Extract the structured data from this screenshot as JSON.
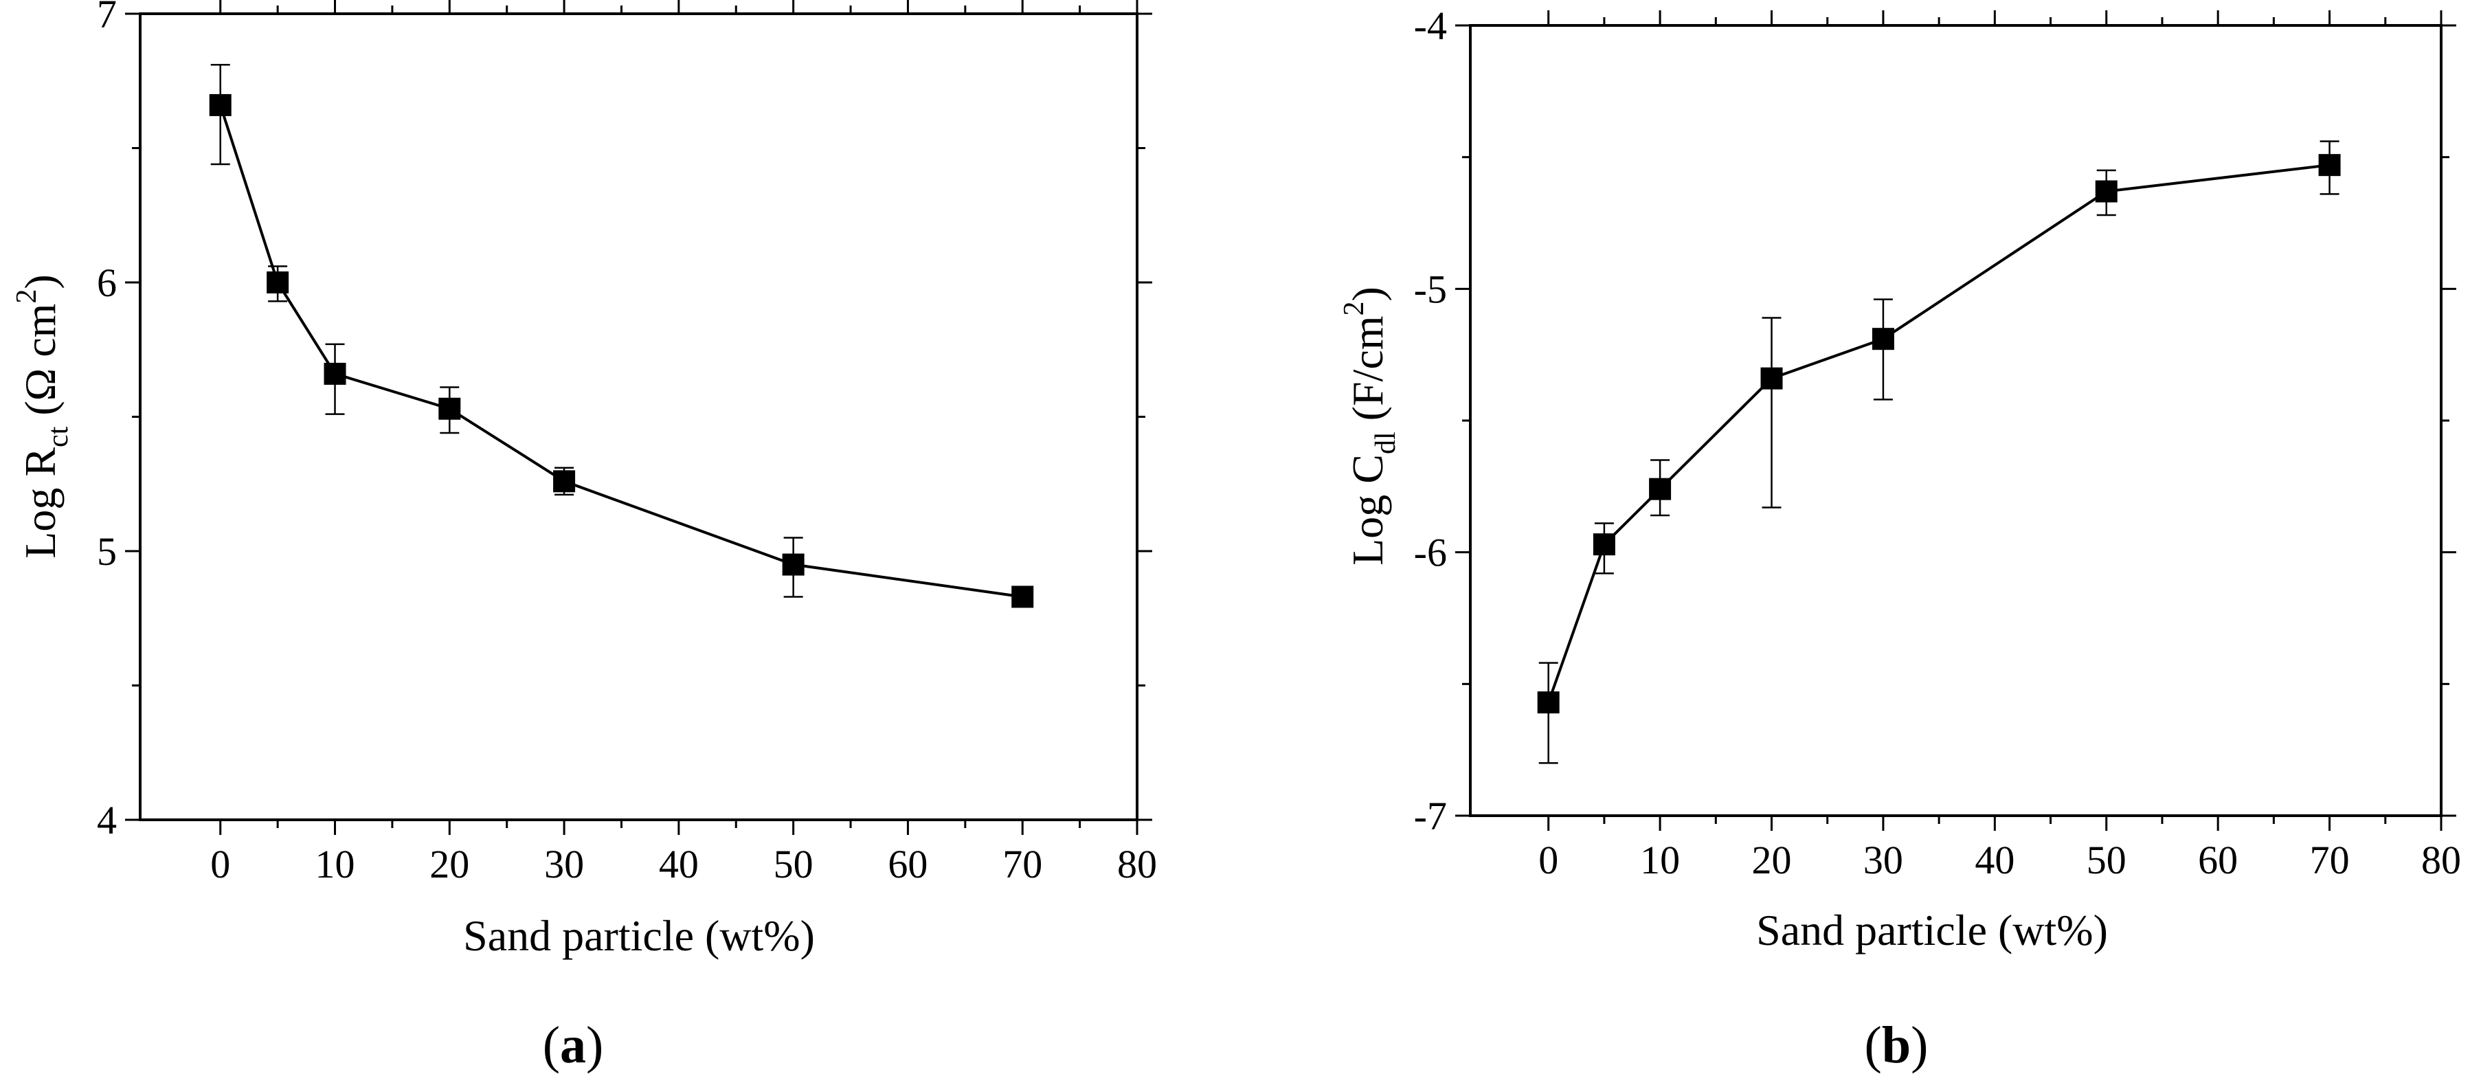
{
  "chart_data": [
    {
      "id": "a",
      "type": "line",
      "panel_label": "a",
      "xlabel": "Sand particle (wt%)",
      "ylabel": {
        "main": "Log R",
        "sub": "ct",
        "unit_open": " (Ω cm",
        "sup": "2",
        "unit_close": ")"
      },
      "xlim": [
        -7,
        80
      ],
      "ylim": [
        4,
        7
      ],
      "xticks": [
        0,
        10,
        20,
        30,
        40,
        50,
        60,
        70,
        80
      ],
      "yticks": [
        4,
        5,
        6,
        7
      ],
      "x": [
        0,
        5,
        10,
        20,
        30,
        50,
        70
      ],
      "y": [
        6.66,
        6.0,
        5.66,
        5.53,
        5.26,
        4.95,
        4.83
      ],
      "yerr_low": [
        6.44,
        5.93,
        5.51,
        5.44,
        5.21,
        4.83,
        4.83
      ],
      "yerr_high": [
        6.81,
        6.06,
        5.77,
        5.61,
        5.31,
        5.05,
        4.83
      ]
    },
    {
      "id": "b",
      "type": "line",
      "panel_label": "b",
      "xlabel": "Sand particle (wt%)",
      "ylabel": {
        "main": "Log C",
        "sub": "dl",
        "unit_open": " (F/cm",
        "sup": "2",
        "unit_close": ")"
      },
      "xlim": [
        -7,
        80
      ],
      "ylim": [
        -7,
        -4
      ],
      "xticks": [
        0,
        10,
        20,
        30,
        40,
        50,
        60,
        70,
        80
      ],
      "yticks": [
        -7,
        -6,
        -5,
        -4
      ],
      "x": [
        0,
        5,
        10,
        20,
        30,
        50,
        70
      ],
      "y": [
        -6.57,
        -5.97,
        -5.76,
        -5.34,
        -5.19,
        -4.63,
        -4.53
      ],
      "yerr_low": [
        -6.8,
        -6.08,
        -5.86,
        -5.83,
        -5.42,
        -4.72,
        -4.64
      ],
      "yerr_high": [
        -6.42,
        -5.89,
        -5.65,
        -5.11,
        -5.04,
        -4.55,
        -4.44
      ]
    }
  ]
}
